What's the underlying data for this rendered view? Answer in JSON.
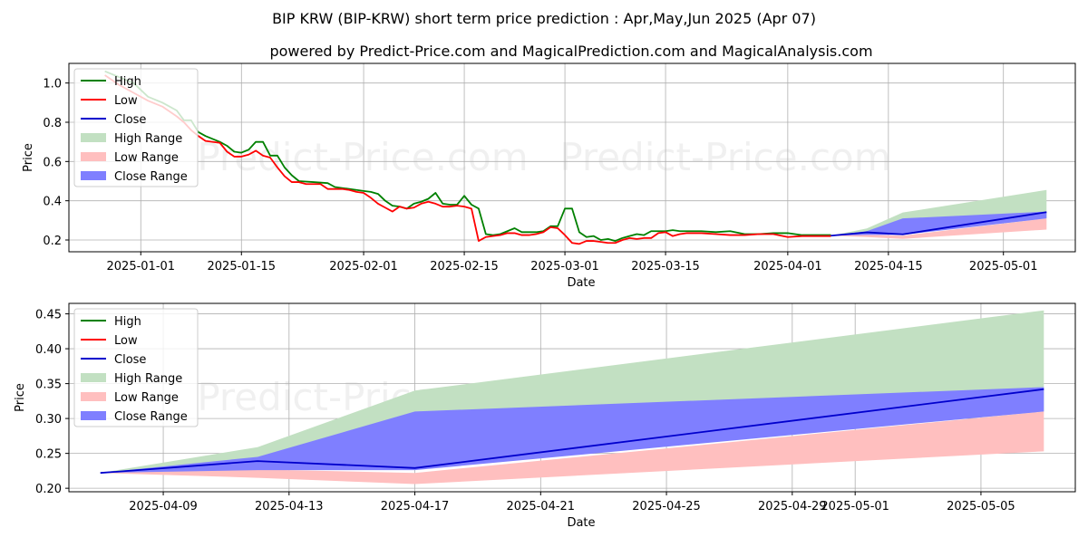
{
  "title": "BIP KRW (BIP-KRW) short term price prediction : Apr,May,Jun 2025 (Apr 07)",
  "subtitle": "powered by Predict-Price.com and MagicalPrediction.com and MagicalAnalysis.com",
  "watermark": "Predict-Price.com",
  "colors": {
    "high": "#008000",
    "low": "#ff0000",
    "close": "#0000cd",
    "high_range": "#c2e0c2",
    "low_range": "#ffbfbf",
    "close_range": "#7f7fff"
  },
  "legend": {
    "high": "High",
    "low": "Low",
    "close": "Close",
    "high_range": "High Range",
    "low_range": "Low Range",
    "close_range": "Close Range"
  },
  "chart_data": [
    {
      "type": "line",
      "xlabel": "Date",
      "ylabel": "Price",
      "xlim": [
        "2024-12-22",
        "2025-05-11"
      ],
      "ylim": [
        0.14,
        1.1
      ],
      "x_ticks": [
        "2025-01-01",
        "2025-01-15",
        "2025-02-01",
        "2025-02-15",
        "2025-03-01",
        "2025-03-15",
        "2025-04-01",
        "2025-04-15",
        "2025-05-01"
      ],
      "y_ticks": [
        "0.2",
        "0.4",
        "0.6",
        "0.8",
        "1.0"
      ],
      "grid": true,
      "legend_position": "top-left",
      "history_high": [
        [
          "2024-12-27",
          1.06
        ],
        [
          "2024-12-29",
          1.03
        ],
        [
          "2024-12-31",
          1.0
        ],
        [
          "2025-01-02",
          0.93
        ],
        [
          "2025-01-04",
          0.9
        ],
        [
          "2025-01-06",
          0.86
        ],
        [
          "2025-01-07",
          0.81
        ],
        [
          "2025-01-08",
          0.81
        ],
        [
          "2025-01-09",
          0.75
        ],
        [
          "2025-01-10",
          0.73
        ],
        [
          "2025-01-12",
          0.7
        ],
        [
          "2025-01-13",
          0.68
        ],
        [
          "2025-01-14",
          0.65
        ],
        [
          "2025-01-15",
          0.645
        ],
        [
          "2025-01-16",
          0.66
        ],
        [
          "2025-01-17",
          0.7
        ],
        [
          "2025-01-18",
          0.7
        ],
        [
          "2025-01-19",
          0.63
        ],
        [
          "2025-01-20",
          0.63
        ],
        [
          "2025-01-21",
          0.57
        ],
        [
          "2025-01-22",
          0.53
        ],
        [
          "2025-01-23",
          0.5
        ],
        [
          "2025-01-25",
          0.495
        ],
        [
          "2025-01-27",
          0.49
        ],
        [
          "2025-01-28",
          0.47
        ],
        [
          "2025-01-29",
          0.465
        ],
        [
          "2025-01-30",
          0.46
        ],
        [
          "2025-01-31",
          0.455
        ],
        [
          "2025-02-01",
          0.45
        ],
        [
          "2025-02-02",
          0.445
        ],
        [
          "2025-02-03",
          0.435
        ],
        [
          "2025-02-04",
          0.4
        ],
        [
          "2025-02-05",
          0.375
        ],
        [
          "2025-02-06",
          0.37
        ],
        [
          "2025-02-07",
          0.36
        ],
        [
          "2025-02-08",
          0.385
        ],
        [
          "2025-02-09",
          0.395
        ],
        [
          "2025-02-10",
          0.41
        ],
        [
          "2025-02-11",
          0.44
        ],
        [
          "2025-02-12",
          0.385
        ],
        [
          "2025-02-13",
          0.38
        ],
        [
          "2025-02-14",
          0.38
        ],
        [
          "2025-02-15",
          0.425
        ],
        [
          "2025-02-16",
          0.38
        ],
        [
          "2025-02-17",
          0.36
        ],
        [
          "2025-02-18",
          0.23
        ],
        [
          "2025-02-19",
          0.225
        ],
        [
          "2025-02-20",
          0.23
        ],
        [
          "2025-02-21",
          0.245
        ],
        [
          "2025-02-22",
          0.26
        ],
        [
          "2025-02-23",
          0.24
        ],
        [
          "2025-02-24",
          0.24
        ],
        [
          "2025-02-25",
          0.24
        ],
        [
          "2025-02-26",
          0.245
        ],
        [
          "2025-02-27",
          0.27
        ],
        [
          "2025-02-28",
          0.27
        ],
        [
          "2025-03-01",
          0.36
        ],
        [
          "2025-03-02",
          0.36
        ],
        [
          "2025-03-03",
          0.24
        ],
        [
          "2025-03-04",
          0.215
        ],
        [
          "2025-03-05",
          0.22
        ],
        [
          "2025-03-06",
          0.2
        ],
        [
          "2025-03-07",
          0.205
        ],
        [
          "2025-03-08",
          0.195
        ],
        [
          "2025-03-09",
          0.21
        ],
        [
          "2025-03-10",
          0.22
        ],
        [
          "2025-03-11",
          0.23
        ],
        [
          "2025-03-12",
          0.225
        ],
        [
          "2025-03-13",
          0.245
        ],
        [
          "2025-03-14",
          0.245
        ],
        [
          "2025-03-15",
          0.245
        ],
        [
          "2025-03-16",
          0.25
        ],
        [
          "2025-03-17",
          0.245
        ],
        [
          "2025-03-18",
          0.245
        ],
        [
          "2025-03-20",
          0.245
        ],
        [
          "2025-03-22",
          0.24
        ],
        [
          "2025-03-24",
          0.245
        ],
        [
          "2025-03-26",
          0.23
        ],
        [
          "2025-03-28",
          0.23
        ],
        [
          "2025-03-30",
          0.235
        ],
        [
          "2025-04-01",
          0.235
        ],
        [
          "2025-04-03",
          0.225
        ],
        [
          "2025-04-05",
          0.225
        ],
        [
          "2025-04-07",
          0.225
        ]
      ],
      "history_low": [
        [
          "2024-12-27",
          1.04
        ],
        [
          "2024-12-29",
          0.99
        ],
        [
          "2024-12-31",
          0.95
        ],
        [
          "2025-01-02",
          0.91
        ],
        [
          "2025-01-04",
          0.88
        ],
        [
          "2025-01-06",
          0.83
        ],
        [
          "2025-01-07",
          0.8
        ],
        [
          "2025-01-08",
          0.76
        ],
        [
          "2025-01-09",
          0.73
        ],
        [
          "2025-01-10",
          0.705
        ],
        [
          "2025-01-12",
          0.695
        ],
        [
          "2025-01-13",
          0.65
        ],
        [
          "2025-01-14",
          0.625
        ],
        [
          "2025-01-15",
          0.625
        ],
        [
          "2025-01-16",
          0.635
        ],
        [
          "2025-01-17",
          0.655
        ],
        [
          "2025-01-18",
          0.63
        ],
        [
          "2025-01-19",
          0.62
        ],
        [
          "2025-01-20",
          0.57
        ],
        [
          "2025-01-21",
          0.525
        ],
        [
          "2025-01-22",
          0.495
        ],
        [
          "2025-01-23",
          0.495
        ],
        [
          "2025-01-24",
          0.485
        ],
        [
          "2025-01-26",
          0.485
        ],
        [
          "2025-01-27",
          0.46
        ],
        [
          "2025-01-29",
          0.46
        ],
        [
          "2025-01-30",
          0.455
        ],
        [
          "2025-01-31",
          0.445
        ],
        [
          "2025-02-01",
          0.44
        ],
        [
          "2025-02-02",
          0.415
        ],
        [
          "2025-02-03",
          0.385
        ],
        [
          "2025-02-04",
          0.365
        ],
        [
          "2025-02-05",
          0.345
        ],
        [
          "2025-02-06",
          0.37
        ],
        [
          "2025-02-07",
          0.36
        ],
        [
          "2025-02-08",
          0.365
        ],
        [
          "2025-02-09",
          0.385
        ],
        [
          "2025-02-10",
          0.395
        ],
        [
          "2025-02-11",
          0.385
        ],
        [
          "2025-02-12",
          0.37
        ],
        [
          "2025-02-13",
          0.37
        ],
        [
          "2025-02-14",
          0.375
        ],
        [
          "2025-02-15",
          0.37
        ],
        [
          "2025-02-16",
          0.36
        ],
        [
          "2025-02-17",
          0.195
        ],
        [
          "2025-02-18",
          0.215
        ],
        [
          "2025-02-19",
          0.22
        ],
        [
          "2025-02-20",
          0.225
        ],
        [
          "2025-02-21",
          0.235
        ],
        [
          "2025-02-22",
          0.235
        ],
        [
          "2025-02-23",
          0.225
        ],
        [
          "2025-02-24",
          0.225
        ],
        [
          "2025-02-25",
          0.23
        ],
        [
          "2025-02-26",
          0.24
        ],
        [
          "2025-02-27",
          0.265
        ],
        [
          "2025-02-28",
          0.26
        ],
        [
          "2025-03-01",
          0.225
        ],
        [
          "2025-03-02",
          0.185
        ],
        [
          "2025-03-03",
          0.18
        ],
        [
          "2025-03-04",
          0.195
        ],
        [
          "2025-03-05",
          0.195
        ],
        [
          "2025-03-06",
          0.19
        ],
        [
          "2025-03-07",
          0.185
        ],
        [
          "2025-03-08",
          0.185
        ],
        [
          "2025-03-09",
          0.2
        ],
        [
          "2025-03-10",
          0.21
        ],
        [
          "2025-03-11",
          0.205
        ],
        [
          "2025-03-12",
          0.21
        ],
        [
          "2025-03-13",
          0.21
        ],
        [
          "2025-03-14",
          0.235
        ],
        [
          "2025-03-15",
          0.24
        ],
        [
          "2025-03-16",
          0.22
        ],
        [
          "2025-03-17",
          0.23
        ],
        [
          "2025-03-18",
          0.235
        ],
        [
          "2025-03-20",
          0.235
        ],
        [
          "2025-03-22",
          0.23
        ],
        [
          "2025-03-24",
          0.225
        ],
        [
          "2025-03-26",
          0.225
        ],
        [
          "2025-03-28",
          0.23
        ],
        [
          "2025-03-30",
          0.23
        ],
        [
          "2025-04-01",
          0.215
        ],
        [
          "2025-04-03",
          0.22
        ],
        [
          "2025-04-05",
          0.22
        ],
        [
          "2025-04-07",
          0.22
        ]
      ],
      "forecast": {
        "x": [
          "2025-04-07",
          "2025-04-12",
          "2025-04-17",
          "2025-05-07"
        ],
        "close": [
          0.222,
          0.239,
          0.229,
          0.342
        ],
        "high_range": [
          [
            0.222,
            0.222
          ],
          [
            0.231,
            0.259
          ],
          [
            0.228,
            0.34
          ],
          [
            0.31,
            0.455
          ]
        ],
        "low_range": [
          [
            0.222,
            0.222
          ],
          [
            0.215,
            0.227
          ],
          [
            0.206,
            0.222
          ],
          [
            0.253,
            0.31
          ]
        ],
        "close_range": [
          [
            0.222,
            0.222
          ],
          [
            0.226,
            0.245
          ],
          [
            0.226,
            0.31
          ],
          [
            0.31,
            0.345
          ]
        ]
      }
    },
    {
      "type": "area",
      "xlabel": "Date",
      "ylabel": "Price",
      "xlim": [
        "2025-04-06",
        "2025-05-08"
      ],
      "ylim": [
        0.195,
        0.465
      ],
      "x_ticks": [
        "2025-04-09",
        "2025-04-13",
        "2025-04-17",
        "2025-04-21",
        "2025-04-25",
        "2025-04-29",
        "2025-05-01",
        "2025-05-05"
      ],
      "y_ticks": [
        "0.20",
        "0.25",
        "0.30",
        "0.35",
        "0.40",
        "0.45"
      ],
      "grid": true,
      "legend_position": "top-left",
      "x": [
        "2025-04-07",
        "2025-04-12",
        "2025-04-17",
        "2025-05-07"
      ],
      "close": [
        0.222,
        0.239,
        0.229,
        0.342
      ],
      "high_range": [
        [
          0.222,
          0.222
        ],
        [
          0.231,
          0.259
        ],
        [
          0.228,
          0.34
        ],
        [
          0.31,
          0.455
        ]
      ],
      "low_range": [
        [
          0.222,
          0.222
        ],
        [
          0.215,
          0.227
        ],
        [
          0.206,
          0.222
        ],
        [
          0.253,
          0.31
        ]
      ],
      "close_range": [
        [
          0.222,
          0.222
        ],
        [
          0.226,
          0.245
        ],
        [
          0.226,
          0.31
        ],
        [
          0.31,
          0.345
        ]
      ]
    }
  ]
}
